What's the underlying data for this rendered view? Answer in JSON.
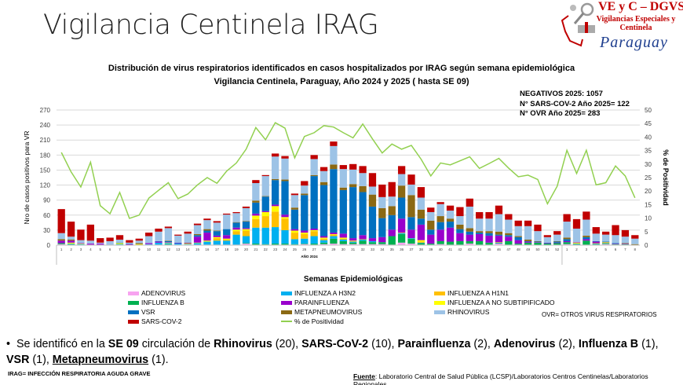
{
  "header": {
    "title": "Vigilancia Centinela IRAG",
    "logo": {
      "line1": "VE y C – DGVS",
      "line2": "Vigilancias Especiales y Centinela",
      "line3": "Paraguay"
    }
  },
  "chart_title_line1": "Distribución de virus respiratorios identificados en casos hospitalizados por IRAG según semana epidemiológica",
  "chart_title_line2": "Vigilancia Centinela, Paraguay, Año 2024 y 2025 ( hasta SE 09)",
  "notes": [
    "NEGATIVOS 2025: 1057",
    "N° SARS-COV-2 Año 2025= 122",
    "N° OVR Año 2025= 283"
  ],
  "chart_data": {
    "type": "bar",
    "stacked": true,
    "xlabel": "Semanas Epidemiológicas",
    "ylabel": "Nro de casos positivos para VR",
    "y2label": "% de Positividad",
    "ylim": [
      0,
      270
    ],
    "y2lim": [
      0,
      50
    ],
    "yticks": [
      "0",
      "30",
      "60",
      "90",
      "120",
      "150",
      "180",
      "210",
      "240",
      "270"
    ],
    "y2ticks": [
      "0",
      "5",
      "10",
      "15",
      "20",
      "25",
      "30",
      "35",
      "40",
      "45",
      "50"
    ],
    "year_label": "AÑO 2024",
    "grid": true,
    "legend_position": "bottom",
    "categories": [
      "1",
      "2",
      "3",
      "4",
      "5",
      "6",
      "7",
      "8",
      "9",
      "10",
      "11",
      "12",
      "13",
      "14",
      "15",
      "16",
      "17",
      "18",
      "19",
      "20",
      "21",
      "22",
      "23",
      "24",
      "25",
      "26",
      "27",
      "28",
      "29",
      "30",
      "31",
      "32",
      "33",
      "34",
      "35",
      "36",
      "37",
      "38",
      "39",
      "40",
      "41",
      "42",
      "43",
      "44",
      "45",
      "46",
      "47",
      "48",
      "49",
      "50",
      "51",
      "52",
      "1",
      "2",
      "3",
      "4",
      "5",
      "6",
      "7",
      "8"
    ],
    "series": [
      {
        "name": "ADENOVIRUS",
        "color": "#f7a3f0",
        "values": [
          2,
          1,
          0,
          1,
          0,
          0,
          0,
          0,
          0,
          1,
          1,
          1,
          1,
          1,
          1,
          1,
          1,
          1,
          1,
          3,
          1,
          1,
          1,
          1,
          1,
          2,
          1,
          2,
          3,
          2,
          2,
          2,
          2,
          2,
          1,
          5,
          3,
          1,
          1,
          2,
          1,
          1,
          3,
          1,
          1,
          3,
          1,
          1,
          1,
          0,
          0,
          1,
          2,
          1,
          1,
          1,
          2,
          1,
          1,
          0
        ]
      },
      {
        "name": "INFLUENZA B",
        "color": "#00b050",
        "values": [
          2,
          1,
          0,
          0,
          0,
          0,
          0,
          0,
          0,
          0,
          0,
          1,
          0,
          0,
          0,
          0,
          0,
          0,
          0,
          1,
          2,
          1,
          2,
          2,
          1,
          1,
          2,
          3,
          10,
          6,
          3,
          7,
          4,
          4,
          17,
          17,
          10,
          3,
          2,
          6,
          6,
          7,
          5,
          7,
          4,
          1,
          7,
          2,
          4,
          5,
          3,
          3,
          4,
          1,
          8,
          1,
          1,
          1,
          1,
          0
        ]
      },
      {
        "name": "INFLUENZA A H3N2",
        "color": "#00b0f0",
        "values": [
          0,
          1,
          2,
          0,
          1,
          0,
          2,
          0,
          0,
          1,
          4,
          2,
          2,
          1,
          3,
          6,
          8,
          8,
          20,
          14,
          32,
          33,
          33,
          27,
          10,
          10,
          15,
          5,
          5,
          3,
          2,
          2,
          2,
          0,
          0,
          2,
          1,
          1,
          0,
          0,
          0,
          0,
          0,
          0,
          0,
          1,
          0,
          0,
          0,
          0,
          0,
          0,
          0,
          1,
          0,
          1,
          1,
          0,
          0,
          0
        ]
      },
      {
        "name": "INFLUENZA A H1N1",
        "color": "#ffc000",
        "values": [
          0,
          0,
          0,
          0,
          0,
          0,
          0,
          0,
          0,
          0,
          0,
          0,
          0,
          0,
          0,
          0,
          5,
          2,
          7,
          11,
          17,
          23,
          31,
          23,
          13,
          9,
          10,
          3,
          3,
          2,
          1,
          1,
          0,
          0,
          0,
          1,
          0,
          2,
          0,
          0,
          0,
          0,
          0,
          0,
          0,
          1,
          0,
          0,
          0,
          0,
          0,
          0,
          0,
          1,
          0,
          1,
          2,
          0,
          0,
          0
        ]
      },
      {
        "name": "INFLUENZA A NO SUBTIPIFICADO",
        "color": "#ffff00",
        "values": [
          0,
          2,
          1,
          0,
          0,
          0,
          2,
          0,
          2,
          0,
          0,
          1,
          0,
          1,
          1,
          2,
          2,
          2,
          3,
          3,
          7,
          8,
          11,
          3,
          4,
          3,
          2,
          2,
          1,
          2,
          1,
          0,
          0,
          0,
          0,
          0,
          0,
          3,
          0,
          0,
          0,
          0,
          0,
          0,
          0,
          0,
          0,
          0,
          0,
          0,
          0,
          0,
          0,
          1,
          0,
          0,
          0,
          0,
          0,
          0
        ]
      },
      {
        "name": "PARAINFLUENZA",
        "color": "#9900cc",
        "values": [
          5,
          4,
          1,
          2,
          2,
          0,
          0,
          2,
          0,
          2,
          2,
          1,
          1,
          1,
          12,
          16,
          3,
          7,
          4,
          2,
          4,
          2,
          3,
          5,
          3,
          4,
          3,
          3,
          3,
          8,
          5,
          8,
          6,
          10,
          13,
          28,
          17,
          31,
          18,
          23,
          28,
          16,
          13,
          14,
          14,
          13,
          9,
          7,
          2,
          1,
          1,
          1,
          2,
          1,
          3,
          3,
          0,
          1,
          1,
          0
        ]
      },
      {
        "name": "VSR",
        "color": "#0070c0",
        "values": [
          0,
          0,
          0,
          0,
          0,
          0,
          1,
          1,
          0,
          0,
          1,
          2,
          1,
          0,
          3,
          4,
          9,
          12,
          10,
          13,
          22,
          29,
          49,
          67,
          39,
          71,
          105,
          102,
          127,
          87,
          102,
          86,
          63,
          38,
          29,
          42,
          25,
          12,
          10,
          15,
          12,
          8,
          6,
          3,
          5,
          2,
          3,
          6,
          1,
          1,
          1,
          2,
          4,
          0,
          4,
          1,
          1,
          1,
          0,
          0
        ]
      },
      {
        "name": "METAPNEUMOVIRUS",
        "color": "#8b6914",
        "values": [
          3,
          2,
          0,
          0,
          0,
          0,
          0,
          0,
          2,
          0,
          0,
          1,
          0,
          1,
          2,
          3,
          1,
          0,
          1,
          1,
          4,
          1,
          2,
          3,
          4,
          3,
          2,
          6,
          9,
          5,
          6,
          12,
          24,
          20,
          18,
          24,
          44,
          18,
          18,
          12,
          6,
          9,
          7,
          3,
          4,
          6,
          4,
          2,
          3,
          1,
          0,
          1,
          3,
          0,
          3,
          0,
          0,
          0,
          1,
          2
        ]
      },
      {
        "name": "RHINOVIRUS",
        "color": "#9dc3e6",
        "values": [
          12,
          6,
          6,
          6,
          2,
          8,
          6,
          2,
          5,
          14,
          19,
          25,
          14,
          18,
          18,
          18,
          16,
          29,
          18,
          26,
          35,
          40,
          45,
          42,
          25,
          16,
          32,
          22,
          37,
          37,
          29,
          26,
          16,
          22,
          19,
          23,
          21,
          24,
          17,
          24,
          16,
          17,
          43,
          25,
          25,
          35,
          27,
          20,
          27,
          20,
          11,
          13,
          32,
          27,
          32,
          15,
          14,
          16,
          13,
          11
        ]
      },
      {
        "name": "SARS-COV-2",
        "color": "#c00000",
        "values": [
          48,
          30,
          21,
          32,
          9,
          7,
          9,
          5,
          4,
          7,
          6,
          3,
          2,
          4,
          3,
          3,
          3,
          2,
          2,
          3,
          6,
          2,
          6,
          5,
          3,
          9,
          8,
          8,
          9,
          8,
          11,
          14,
          27,
          25,
          29,
          16,
          20,
          21,
          9,
          4,
          10,
          18,
          16,
          13,
          13,
          17,
          11,
          11,
          11,
          13,
          4,
          7,
          15,
          19,
          16,
          13,
          6,
          20,
          13,
          7
        ]
      }
    ],
    "line": {
      "name": "% de Positividad",
      "color": "#92d050",
      "axis": "right",
      "values": [
        34.3,
        27.1,
        21.5,
        30.7,
        14.6,
        11.6,
        19.5,
        9.9,
        11.1,
        17.4,
        20.3,
        23.1,
        17.2,
        18.9,
        22.3,
        25,
        22.9,
        27.4,
        30.4,
        35.5,
        43.5,
        39,
        45.3,
        43.3,
        32.3,
        40.2,
        41.6,
        44.2,
        43.7,
        41.6,
        39.7,
        44.8,
        39.3,
        34.1,
        37.4,
        35.5,
        36.9,
        31.8,
        25.6,
        30.4,
        29.7,
        31.2,
        32.7,
        28.4,
        30.2,
        32.1,
        28.5,
        25.3,
        25.9,
        24.3,
        15.3,
        21.8,
        35.1,
        26.5,
        35.1,
        22.3,
        23.1,
        29.3,
        25.6,
        17.5
      ]
    }
  },
  "legend_note": "OVR=  OTROS VIRUS RESPIRATORIOS",
  "bullet": [
    {
      "t": "Se identificó en la ",
      "b": false
    },
    {
      "t": "SE 09",
      "b": true
    },
    {
      "t": " circulación de ",
      "b": false
    },
    {
      "t": "Rhinovirus",
      "b": true
    },
    {
      "t": " (20), ",
      "b": false
    },
    {
      "t": "SARS-CoV-2",
      "b": true
    },
    {
      "t": " (10), ",
      "b": false
    },
    {
      "t": "Parainfluenza",
      "b": true
    },
    {
      "t": " (2), ",
      "b": false
    },
    {
      "t": "Adenovirus",
      "b": true
    },
    {
      "t": " (2), ",
      "b": false
    },
    {
      "t": "Influenza B",
      "b": true
    },
    {
      "t": " (1), ",
      "b": false
    },
    {
      "t": "VSR",
      "b": true
    },
    {
      "t": " (1), ",
      "b": false
    },
    {
      "t": "Metapneumovirus",
      "b": true,
      "u": true
    },
    {
      "t": " (1).",
      "b": false
    }
  ],
  "footer": {
    "irag": "IRAG= INFECCIÓN RESPIRATORIA AGUDA GRAVE",
    "fuente_label": "Fuente",
    "fuente": ": Laboratorio Central de Salud Pública (LCSP)/Laboratorios Centros Centinelas/Laboratorios Regionales"
  }
}
